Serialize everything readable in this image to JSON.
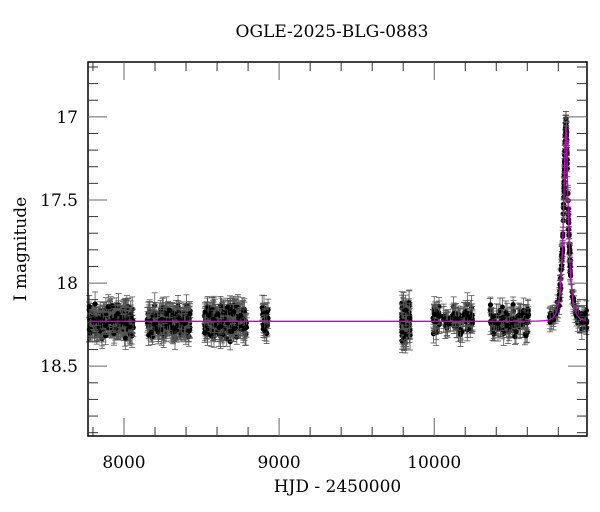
{
  "chart_data": {
    "type": "scatter",
    "title": "OGLE-2025-BLG-0883",
    "xlabel": "HJD - 2450000",
    "ylabel": "I magnitude",
    "xlim": [
      7768,
      10985
    ],
    "ylim": [
      18.92,
      16.67
    ],
    "y_inverted": true,
    "x_major_ticks": [
      8000,
      9000,
      10000
    ],
    "x_tick_labels": [
      "8000",
      "9000",
      "10000"
    ],
    "x_minor_step": 200,
    "y_major_ticks": [
      17,
      17.5,
      18,
      18.5
    ],
    "y_tick_labels": [
      "17",
      "17.5",
      "18",
      "18.5"
    ],
    "y_minor_step": 0.1,
    "grid": false,
    "legend": null,
    "colors": {
      "points": "#000000",
      "errorbars": "#555555",
      "model": "#cc00cc",
      "frame": "#000000"
    },
    "series": [
      {
        "name": "photometry",
        "kind": "errorbar-scatter",
        "baseline_mag": 18.23,
        "clusters": [
          {
            "x_start": 7775,
            "x_end": 8060,
            "n": 260,
            "scatter": 0.06,
            "err": 0.06
          },
          {
            "x_start": 8150,
            "x_end": 8430,
            "n": 230,
            "scatter": 0.06,
            "err": 0.06
          },
          {
            "x_start": 8520,
            "x_end": 8790,
            "n": 230,
            "scatter": 0.06,
            "err": 0.06
          },
          {
            "x_start": 8890,
            "x_end": 8930,
            "n": 30,
            "scatter": 0.07,
            "err": 0.06
          },
          {
            "x_start": 9790,
            "x_end": 9845,
            "n": 90,
            "scatter": 0.08,
            "err": 0.07
          },
          {
            "x_start": 9990,
            "x_end": 10250,
            "n": 90,
            "scatter": 0.06,
            "err": 0.06
          },
          {
            "x_start": 10360,
            "x_end": 10620,
            "n": 90,
            "scatter": 0.06,
            "err": 0.06
          },
          {
            "x_start": 10740,
            "x_end": 10985,
            "n": 160,
            "scatter": 0.04,
            "err": 0.05,
            "follows_model": true
          }
        ]
      },
      {
        "name": "microlensing model",
        "kind": "line",
        "baseline_mag": 18.23,
        "peak_time": 10849,
        "peak_mag": 17.06,
        "u0": 0.08,
        "tE": 30
      }
    ]
  }
}
